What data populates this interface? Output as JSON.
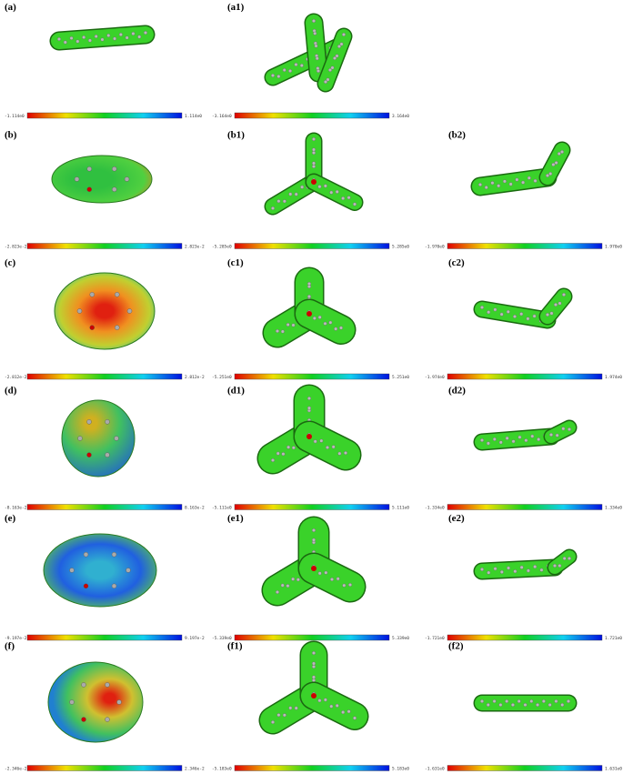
{
  "panels": [
    {
      "label": "(a)",
      "min": "-1.114e0",
      "max": "1.114e0"
    },
    {
      "label": "(a1)",
      "min": "-3.164e0",
      "max": "3.164e0"
    },
    {
      "label": "(b)",
      "min": "-2.823e-2",
      "max": "2.823e-2"
    },
    {
      "label": "(b1)",
      "min": "-5.285e0",
      "max": "5.285e0"
    },
    {
      "label": "(b2)",
      "min": "-1.970e0",
      "max": "1.970e0"
    },
    {
      "label": "(c)",
      "min": "-2.812e-2",
      "max": "2.812e-2"
    },
    {
      "label": "(c1)",
      "min": "-5.251e0",
      "max": "5.251e0"
    },
    {
      "label": "(c2)",
      "min": "-1.974e0",
      "max": "1.974e0"
    },
    {
      "label": "(d)",
      "min": "-8.163e-2",
      "max": "8.163e-2"
    },
    {
      "label": "(d1)",
      "min": "-5.111e0",
      "max": "5.111e0"
    },
    {
      "label": "(d2)",
      "min": "-1.334e0",
      "max": "1.334e0"
    },
    {
      "label": "(e)",
      "min": "-9.197e-2",
      "max": "9.197e-2"
    },
    {
      "label": "(e1)",
      "min": "-5.339e0",
      "max": "5.339e0"
    },
    {
      "label": "(e2)",
      "min": "-1.721e0",
      "max": "1.721e0"
    },
    {
      "label": "(f)",
      "min": "-2.346e-2",
      "max": "2.346e-2"
    },
    {
      "label": "(f1)",
      "min": "-5.183e0",
      "max": "5.183e0"
    },
    {
      "label": "(f2)",
      "min": "-1.631e0",
      "max": "1.631e0"
    }
  ]
}
